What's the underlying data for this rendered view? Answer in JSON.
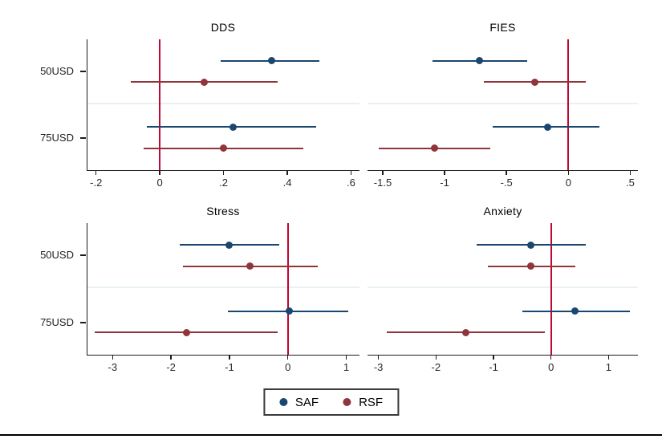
{
  "figure": {
    "background": "#ffffff",
    "zero_line_color": "#c10534",
    "divider_color": "#eaf1f1",
    "group_labels": [
      "50USD",
      "75USD"
    ],
    "legend": [
      {
        "label": "SAF",
        "color": "#1a476f"
      },
      {
        "label": "RSF",
        "color": "#90353b"
      }
    ]
  },
  "chart_data": [
    {
      "type": "scatter",
      "subtype": "coefficient-plot",
      "title": "DDS",
      "xlabel": "",
      "ylabel": "",
      "grid": false,
      "zero_line": 0,
      "xlim": [
        -0.227,
        0.629
      ],
      "xticks": [
        {
          "v": -0.2,
          "label": "-.2"
        },
        {
          "v": 0.0,
          "label": "0"
        },
        {
          "v": 0.2,
          "label": ".2"
        },
        {
          "v": 0.4,
          "label": ".4"
        },
        {
          "v": 0.6,
          "label": ".6"
        }
      ],
      "series": [
        {
          "name": "SAF",
          "color": "#1a476f",
          "points": [
            {
              "group": "50USD",
              "est": 0.35,
              "lo": 0.19,
              "hi": 0.5
            },
            {
              "group": "75USD",
              "est": 0.23,
              "lo": -0.04,
              "hi": 0.49
            }
          ]
        },
        {
          "name": "RSF",
          "color": "#90353b",
          "points": [
            {
              "group": "50USD",
              "est": 0.14,
              "lo": -0.09,
              "hi": 0.37
            },
            {
              "group": "75USD",
              "est": 0.2,
              "lo": -0.05,
              "hi": 0.45
            }
          ]
        }
      ]
    },
    {
      "type": "scatter",
      "subtype": "coefficient-plot",
      "title": "FIES",
      "xlabel": "",
      "ylabel": "",
      "grid": false,
      "zero_line": 0,
      "xlim": [
        -1.623,
        0.562
      ],
      "xticks": [
        {
          "v": -1.5,
          "label": "-1.5"
        },
        {
          "v": -1.0,
          "label": "-1"
        },
        {
          "v": -0.5,
          "label": "-.5"
        },
        {
          "v": 0.0,
          "label": "0"
        },
        {
          "v": 0.5,
          "label": ".5"
        }
      ],
      "series": [
        {
          "name": "SAF",
          "color": "#1a476f",
          "points": [
            {
              "group": "50USD",
              "est": -0.72,
              "lo": -1.1,
              "hi": -0.33
            },
            {
              "group": "75USD",
              "est": -0.17,
              "lo": -0.61,
              "hi": 0.25
            }
          ]
        },
        {
          "name": "RSF",
          "color": "#90353b",
          "points": [
            {
              "group": "50USD",
              "est": -0.27,
              "lo": -0.68,
              "hi": 0.14
            },
            {
              "group": "75USD",
              "est": -1.08,
              "lo": -1.53,
              "hi": -0.63
            }
          ]
        }
      ]
    },
    {
      "type": "scatter",
      "subtype": "coefficient-plot",
      "title": "Stress",
      "xlabel": "",
      "ylabel": "",
      "grid": false,
      "zero_line": 0,
      "xlim": [
        -3.43,
        1.24
      ],
      "xticks": [
        {
          "v": -3,
          "label": "-3"
        },
        {
          "v": -2,
          "label": "-2"
        },
        {
          "v": -1,
          "label": "-1"
        },
        {
          "v": 0,
          "label": "0"
        },
        {
          "v": 1,
          "label": "1"
        }
      ],
      "series": [
        {
          "name": "SAF",
          "color": "#1a476f",
          "points": [
            {
              "group": "50USD",
              "est": -1.0,
              "lo": -1.85,
              "hi": -0.15
            },
            {
              "group": "75USD",
              "est": 0.02,
              "lo": -1.02,
              "hi": 1.03
            }
          ]
        },
        {
          "name": "RSF",
          "color": "#90353b",
          "points": [
            {
              "group": "50USD",
              "est": -0.65,
              "lo": -1.8,
              "hi": 0.51
            },
            {
              "group": "75USD",
              "est": -1.74,
              "lo": -3.3,
              "hi": -0.17
            }
          ]
        }
      ]
    },
    {
      "type": "scatter",
      "subtype": "coefficient-plot",
      "title": "Anxiety",
      "xlabel": "",
      "ylabel": "",
      "grid": false,
      "zero_line": 0,
      "xlim": [
        -3.19,
        1.51
      ],
      "xticks": [
        {
          "v": -3,
          "label": "-3"
        },
        {
          "v": -2,
          "label": "-2"
        },
        {
          "v": -1,
          "label": "-1"
        },
        {
          "v": 0,
          "label": "0"
        },
        {
          "v": 1,
          "label": "1"
        }
      ],
      "series": [
        {
          "name": "SAF",
          "color": "#1a476f",
          "points": [
            {
              "group": "50USD",
              "est": -0.35,
              "lo": -1.3,
              "hi": 0.6
            },
            {
              "group": "75USD",
              "est": 0.42,
              "lo": -0.5,
              "hi": 1.37
            }
          ]
        },
        {
          "name": "RSF",
          "color": "#90353b",
          "points": [
            {
              "group": "50USD",
              "est": -0.35,
              "lo": -1.1,
              "hi": 0.42
            },
            {
              "group": "75USD",
              "est": -1.48,
              "lo": -2.85,
              "hi": -0.11
            }
          ]
        }
      ]
    }
  ]
}
